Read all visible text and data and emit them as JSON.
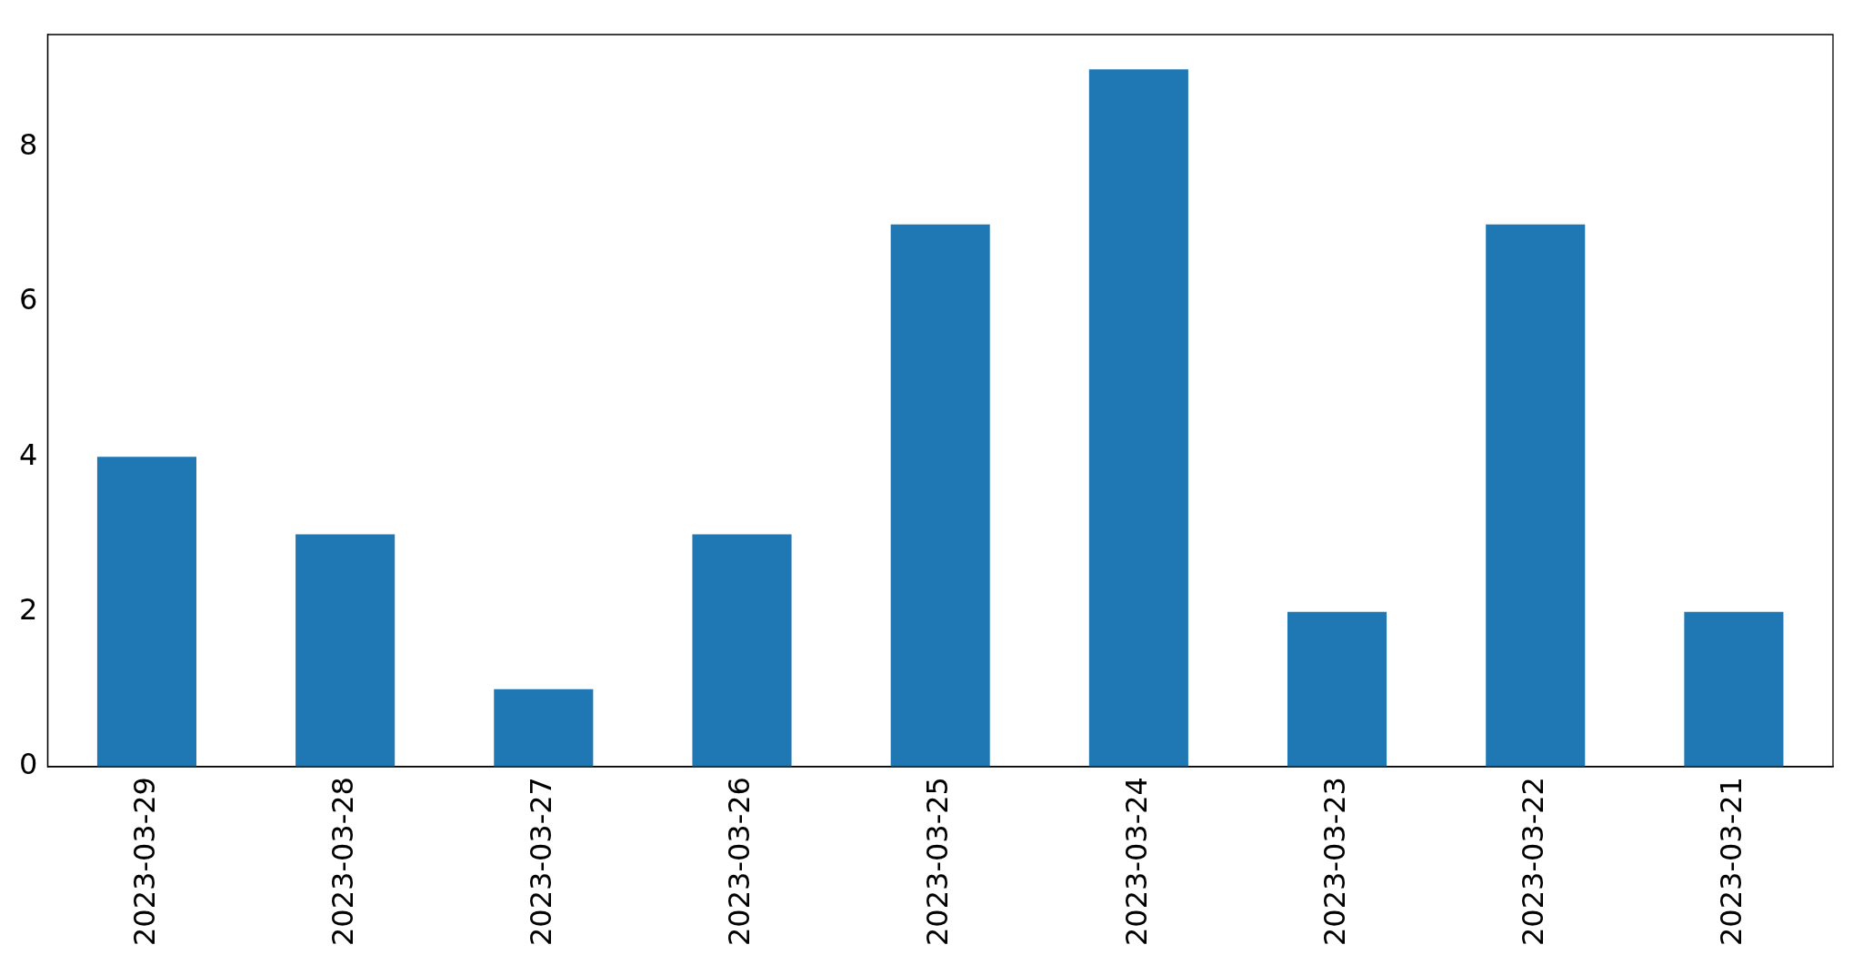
{
  "chart_data": {
    "type": "bar",
    "categories": [
      "2023-03-29",
      "2023-03-28",
      "2023-03-27",
      "2023-03-26",
      "2023-03-25",
      "2023-03-24",
      "2023-03-23",
      "2023-03-22",
      "2023-03-21"
    ],
    "values": [
      4,
      3,
      1,
      3,
      7,
      9,
      2,
      7,
      2
    ],
    "color": "#1f77b4",
    "ylim": [
      0,
      9.45
    ],
    "yticks": [
      0,
      2,
      4,
      6,
      8
    ],
    "grid": false,
    "legend": false
  }
}
